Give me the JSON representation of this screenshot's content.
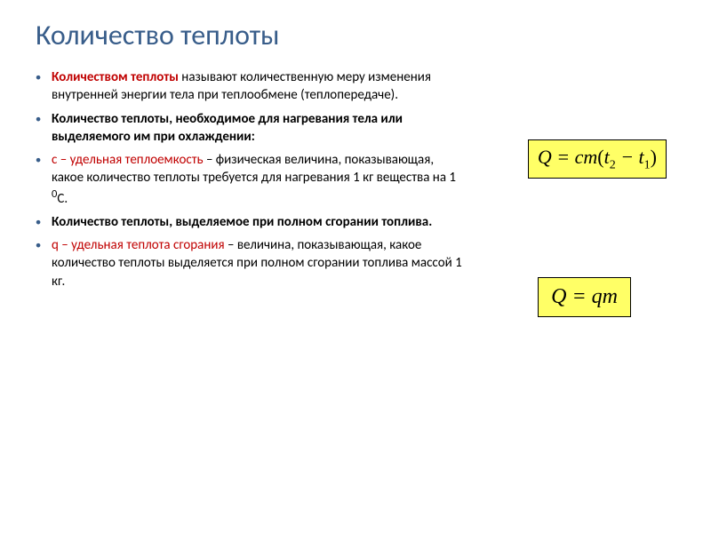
{
  "title": {
    "text": "Количество теплоты",
    "color": "#385d8a"
  },
  "bullets": [
    {
      "html": "<span class='term' style='color:#c00000'>Количеством теплоты</span> называют количественную меру изменения внутренней энергии тела при теплообмене (теплопередаче).",
      "marker_color": "#385d8a"
    },
    {
      "html": "<span class='term'>Количество теплоты, необходимое для нагревания тела или выделяемого им при охлаждении:</span>",
      "marker_color": "#385d8a"
    },
    {
      "html": "<span class='var-c'>c – удельная теплоемкость</span> – физическая величина, показывающая, какое количество теплоты требуется для нагревания 1 кг вещества на 1 <sup>0</sup>С.",
      "marker_color": "#385d8a"
    },
    {
      "html": "<span class='term'>Количество теплоты, выделяемое при полном сгорании топлива.</span>",
      "marker_color": "#385d8a"
    },
    {
      "html": "<span class='var-q'>q – удельная теплота сгорания</span> – величина, показывающая, какое количество теплоты выделяется при полном сгорании топлива массой 1 кг.",
      "marker_color": "#385d8a"
    }
  ],
  "formulas": {
    "f1": {
      "display": "Q = cm(t₂ − t₁)",
      "background": "#ffff66",
      "html": "Q = cm<span style='font-style:normal'>(</span>t<span class='sub'>2</span> − t<span class='sub'>1</span><span style='font-style:normal'>)</span>"
    },
    "f2": {
      "display": "Q = qm",
      "background": "#ffff66",
      "html": "Q = qm"
    }
  }
}
